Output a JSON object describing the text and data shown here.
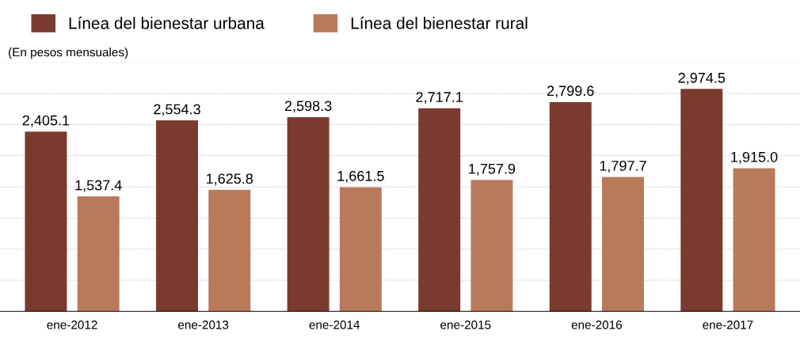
{
  "chart_data": {
    "type": "bar",
    "subtitle": "(En pesos mensuales)",
    "categories": [
      "ene-2012",
      "ene-2013",
      "ene-2014",
      "ene-2015",
      "ene-2016",
      "ene-2017"
    ],
    "series": [
      {
        "name": "Línea del bienestar urbana",
        "color": "#7b3a2e",
        "values": [
          2405.1,
          2554.3,
          2598.3,
          2717.1,
          2799.6,
          2974.5
        ],
        "value_labels": [
          "2,405.1",
          "2,554.3",
          "2,598.3",
          "2,717.1",
          "2,799.6",
          "2,974.5"
        ]
      },
      {
        "name": "Línea del bienestar rural",
        "color": "#b97a5c",
        "values": [
          1537.4,
          1625.8,
          1661.5,
          1757.9,
          1797.7,
          1915.0
        ],
        "value_labels": [
          "1,537.4",
          "1,625.8",
          "1,661.5",
          "1,757.9",
          "1,797.7",
          "1,915.0"
        ]
      }
    ],
    "legend": "top",
    "grid": "y"
  }
}
